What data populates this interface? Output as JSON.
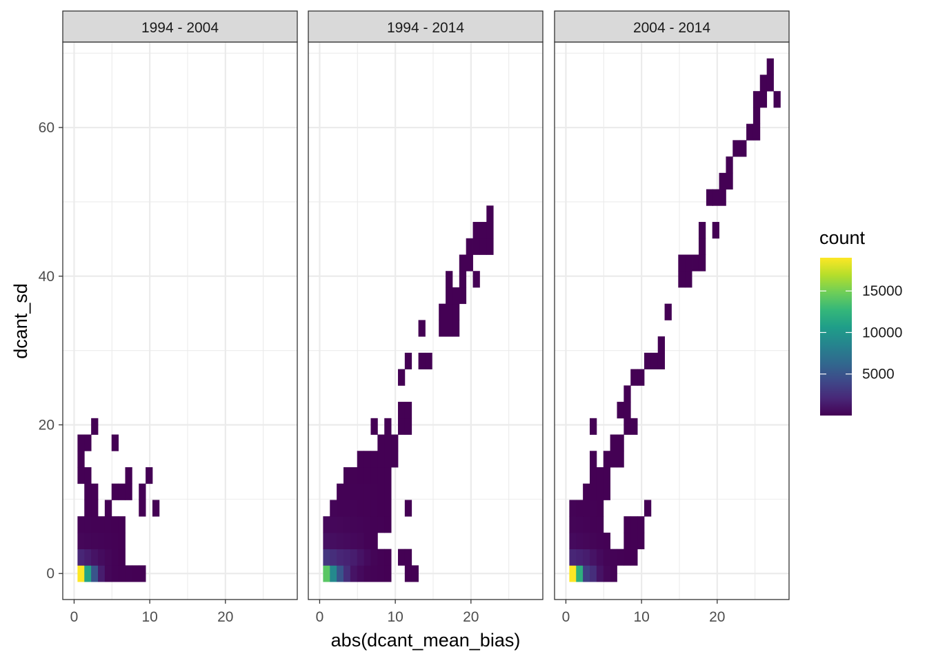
{
  "chart_data": {
    "type": "heatmap",
    "subtype": "faceted 2D histogram",
    "xlabel": "abs(dcant_mean_bias)",
    "ylabel": "dcant_sd",
    "xlim": [
      -1.5,
      29.5
    ],
    "ylim": [
      -3.5,
      71.5
    ],
    "x_ticks": [
      0,
      10,
      20
    ],
    "y_ticks": [
      0,
      20,
      40,
      60
    ],
    "bin_width_x": 0.9,
    "bin_width_y": 2.2,
    "grid": true,
    "legend": {
      "title": "count",
      "placement": "right",
      "colormap": "viridis",
      "min": 1,
      "max": 19000,
      "ticks": [
        5000,
        10000,
        15000
      ]
    },
    "panels": [
      {
        "strip": "1994 - 2004",
        "cells": [
          [
            0.9,
            0.0,
            19000
          ],
          [
            1.8,
            0.0,
            11000
          ],
          [
            2.7,
            0.0,
            5000
          ],
          [
            3.6,
            0.0,
            1500
          ],
          [
            4.5,
            0.0,
            300
          ],
          [
            5.4,
            0.0,
            100
          ],
          [
            6.3,
            0.0,
            60
          ],
          [
            7.2,
            0.0,
            40
          ],
          [
            8.1,
            0.0,
            20
          ],
          [
            9.0,
            0.0,
            5
          ],
          [
            0.9,
            2.2,
            2000
          ],
          [
            1.8,
            2.2,
            1500
          ],
          [
            2.7,
            2.2,
            1000
          ],
          [
            3.6,
            2.2,
            600
          ],
          [
            4.5,
            2.2,
            300
          ],
          [
            5.4,
            2.2,
            100
          ],
          [
            6.3,
            2.2,
            20
          ],
          [
            0.9,
            4.4,
            300
          ],
          [
            1.8,
            4.4,
            250
          ],
          [
            2.7,
            4.4,
            200
          ],
          [
            3.6,
            4.4,
            150
          ],
          [
            4.5,
            4.4,
            100
          ],
          [
            5.4,
            4.4,
            50
          ],
          [
            6.3,
            4.4,
            10
          ],
          [
            0.9,
            6.6,
            100
          ],
          [
            1.8,
            6.6,
            100
          ],
          [
            2.7,
            6.6,
            80
          ],
          [
            3.6,
            6.6,
            60
          ],
          [
            4.5,
            6.6,
            40
          ],
          [
            5.4,
            6.6,
            20
          ],
          [
            6.3,
            6.6,
            5
          ],
          [
            1.8,
            8.8,
            20
          ],
          [
            2.7,
            8.8,
            15
          ],
          [
            4.5,
            8.8,
            5
          ],
          [
            9.0,
            8.8,
            2
          ],
          [
            10.8,
            8.8,
            2
          ],
          [
            1.8,
            11.0,
            10
          ],
          [
            2.7,
            11.0,
            8
          ],
          [
            5.4,
            11.0,
            5
          ],
          [
            6.3,
            11.0,
            4
          ],
          [
            7.2,
            11.0,
            3
          ],
          [
            9.0,
            11.0,
            2
          ],
          [
            0.9,
            13.2,
            5
          ],
          [
            1.8,
            13.2,
            4
          ],
          [
            7.2,
            13.2,
            2
          ],
          [
            9.9,
            13.2,
            2
          ],
          [
            0.9,
            15.4,
            3
          ],
          [
            0.9,
            17.6,
            3
          ],
          [
            1.8,
            17.6,
            2
          ],
          [
            5.4,
            17.6,
            2
          ],
          [
            2.7,
            19.8,
            1
          ]
        ]
      },
      {
        "strip": "1994 - 2014",
        "cells": [
          [
            0.9,
            0.0,
            14000
          ],
          [
            1.8,
            0.0,
            9000
          ],
          [
            2.7,
            0.0,
            5000
          ],
          [
            3.6,
            0.0,
            2500
          ],
          [
            4.5,
            0.0,
            1000
          ],
          [
            5.4,
            0.0,
            500
          ],
          [
            6.3,
            0.0,
            200
          ],
          [
            7.2,
            0.0,
            100
          ],
          [
            8.1,
            0.0,
            50
          ],
          [
            9.0,
            0.0,
            20
          ],
          [
            11.7,
            0.0,
            5
          ],
          [
            12.6,
            0.0,
            3
          ],
          [
            0.9,
            2.2,
            3000
          ],
          [
            1.8,
            2.2,
            2500
          ],
          [
            2.7,
            2.2,
            2000
          ],
          [
            3.6,
            2.2,
            1800
          ],
          [
            4.5,
            2.2,
            1500
          ],
          [
            5.4,
            2.2,
            1000
          ],
          [
            6.3,
            2.2,
            500
          ],
          [
            7.2,
            2.2,
            200
          ],
          [
            8.1,
            2.2,
            50
          ],
          [
            9.0,
            2.2,
            20
          ],
          [
            10.8,
            2.2,
            5
          ],
          [
            11.7,
            2.2,
            3
          ],
          [
            0.9,
            4.4,
            800
          ],
          [
            1.8,
            4.4,
            700
          ],
          [
            2.7,
            4.4,
            600
          ],
          [
            3.6,
            4.4,
            500
          ],
          [
            4.5,
            4.4,
            400
          ],
          [
            5.4,
            4.4,
            300
          ],
          [
            6.3,
            4.4,
            100
          ],
          [
            7.2,
            4.4,
            50
          ],
          [
            0.9,
            6.6,
            400
          ],
          [
            1.8,
            6.6,
            350
          ],
          [
            2.7,
            6.6,
            300
          ],
          [
            3.6,
            6.6,
            250
          ],
          [
            4.5,
            6.6,
            200
          ],
          [
            5.4,
            6.6,
            150
          ],
          [
            6.3,
            6.6,
            100
          ],
          [
            7.2,
            6.6,
            80
          ],
          [
            8.1,
            6.6,
            40
          ],
          [
            9.0,
            6.6,
            20
          ],
          [
            1.8,
            8.8,
            150
          ],
          [
            2.7,
            8.8,
            130
          ],
          [
            3.6,
            8.8,
            120
          ],
          [
            4.5,
            8.8,
            100
          ],
          [
            5.4,
            8.8,
            80
          ],
          [
            6.3,
            8.8,
            60
          ],
          [
            7.2,
            8.8,
            40
          ],
          [
            8.1,
            8.8,
            20
          ],
          [
            9.0,
            8.8,
            10
          ],
          [
            11.7,
            8.8,
            3
          ],
          [
            2.7,
            11.0,
            80
          ],
          [
            3.6,
            11.0,
            70
          ],
          [
            4.5,
            11.0,
            60
          ],
          [
            5.4,
            11.0,
            50
          ],
          [
            6.3,
            11.0,
            40
          ],
          [
            7.2,
            11.0,
            30
          ],
          [
            8.1,
            11.0,
            20
          ],
          [
            9.0,
            11.0,
            10
          ],
          [
            3.6,
            13.2,
            40
          ],
          [
            4.5,
            13.2,
            30
          ],
          [
            5.4,
            13.2,
            25
          ],
          [
            6.3,
            13.2,
            20
          ],
          [
            7.2,
            13.2,
            15
          ],
          [
            8.1,
            13.2,
            10
          ],
          [
            9.0,
            13.2,
            5
          ],
          [
            5.4,
            15.4,
            15
          ],
          [
            6.3,
            15.4,
            10
          ],
          [
            7.2,
            15.4,
            8
          ],
          [
            8.1,
            15.4,
            5
          ],
          [
            9.0,
            15.4,
            3
          ],
          [
            9.9,
            15.4,
            2
          ],
          [
            8.1,
            17.6,
            3
          ],
          [
            9.0,
            17.6,
            2
          ],
          [
            9.9,
            17.6,
            2
          ],
          [
            7.2,
            19.8,
            2
          ],
          [
            9.0,
            19.8,
            2
          ],
          [
            10.8,
            19.8,
            2
          ],
          [
            11.7,
            19.8,
            1
          ],
          [
            10.8,
            22.0,
            1
          ],
          [
            11.7,
            22.0,
            1
          ],
          [
            10.8,
            26.4,
            1
          ],
          [
            11.7,
            28.6,
            1
          ],
          [
            13.5,
            28.6,
            1
          ],
          [
            14.4,
            28.6,
            1
          ],
          [
            13.5,
            33.0,
            1
          ],
          [
            16.2,
            33.0,
            2
          ],
          [
            17.1,
            33.0,
            2
          ],
          [
            18.0,
            33.0,
            1
          ],
          [
            16.2,
            35.2,
            1
          ],
          [
            17.1,
            35.2,
            1
          ],
          [
            18.0,
            35.2,
            1
          ],
          [
            17.1,
            37.4,
            1
          ],
          [
            18.0,
            37.4,
            1
          ],
          [
            18.9,
            37.4,
            1
          ],
          [
            17.1,
            39.6,
            1
          ],
          [
            18.9,
            39.6,
            1
          ],
          [
            20.7,
            39.6,
            1
          ],
          [
            18.9,
            41.8,
            1
          ],
          [
            19.8,
            41.8,
            1
          ],
          [
            19.8,
            44.0,
            1
          ],
          [
            20.7,
            44.0,
            1
          ],
          [
            21.6,
            44.0,
            1
          ],
          [
            22.5,
            44.0,
            1
          ],
          [
            20.7,
            46.2,
            1
          ],
          [
            21.6,
            46.2,
            1
          ],
          [
            22.5,
            46.2,
            1
          ],
          [
            22.5,
            48.4,
            1
          ]
        ]
      },
      {
        "strip": "2004 - 2014",
        "cells": [
          [
            0.9,
            0.0,
            19000
          ],
          [
            1.8,
            0.0,
            12000
          ],
          [
            2.7,
            0.0,
            3500
          ],
          [
            3.6,
            0.0,
            2500
          ],
          [
            4.5,
            0.0,
            1000
          ],
          [
            5.4,
            0.0,
            300
          ],
          [
            6.3,
            0.0,
            100
          ],
          [
            0.9,
            2.2,
            2000
          ],
          [
            1.8,
            2.2,
            1800
          ],
          [
            2.7,
            2.2,
            1500
          ],
          [
            3.6,
            2.2,
            1000
          ],
          [
            4.5,
            2.2,
            500
          ],
          [
            5.4,
            2.2,
            200
          ],
          [
            6.3,
            2.2,
            100
          ],
          [
            7.2,
            2.2,
            50
          ],
          [
            8.1,
            2.2,
            20
          ],
          [
            9.0,
            2.2,
            10
          ],
          [
            0.9,
            4.4,
            500
          ],
          [
            1.8,
            4.4,
            400
          ],
          [
            2.7,
            4.4,
            300
          ],
          [
            3.6,
            4.4,
            200
          ],
          [
            4.5,
            4.4,
            100
          ],
          [
            5.4,
            4.4,
            50
          ],
          [
            8.1,
            4.4,
            10
          ],
          [
            9.0,
            4.4,
            5
          ],
          [
            9.9,
            4.4,
            3
          ],
          [
            0.9,
            6.6,
            200
          ],
          [
            1.8,
            6.6,
            150
          ],
          [
            2.7,
            6.6,
            100
          ],
          [
            3.6,
            6.6,
            80
          ],
          [
            4.5,
            6.6,
            50
          ],
          [
            8.1,
            6.6,
            5
          ],
          [
            9.0,
            6.6,
            3
          ],
          [
            9.9,
            6.6,
            2
          ],
          [
            0.9,
            8.8,
            100
          ],
          [
            1.8,
            8.8,
            80
          ],
          [
            2.7,
            8.8,
            60
          ],
          [
            3.6,
            8.8,
            40
          ],
          [
            4.5,
            8.8,
            20
          ],
          [
            10.8,
            8.8,
            2
          ],
          [
            2.7,
            11.0,
            30
          ],
          [
            3.6,
            11.0,
            25
          ],
          [
            4.5,
            11.0,
            20
          ],
          [
            5.4,
            11.0,
            10
          ],
          [
            3.6,
            13.2,
            15
          ],
          [
            4.5,
            13.2,
            10
          ],
          [
            5.4,
            13.2,
            8
          ],
          [
            3.6,
            15.4,
            8
          ],
          [
            5.4,
            15.4,
            6
          ],
          [
            6.3,
            15.4,
            5
          ],
          [
            7.2,
            15.4,
            3
          ],
          [
            6.3,
            17.6,
            3
          ],
          [
            7.2,
            17.6,
            2
          ],
          [
            3.6,
            19.8,
            2
          ],
          [
            8.1,
            19.8,
            2
          ],
          [
            9.0,
            19.8,
            1
          ],
          [
            7.2,
            22.0,
            1
          ],
          [
            8.1,
            22.0,
            1
          ],
          [
            8.1,
            24.2,
            1
          ],
          [
            9.0,
            26.4,
            1
          ],
          [
            9.9,
            26.4,
            1
          ],
          [
            10.8,
            28.6,
            1
          ],
          [
            11.7,
            28.6,
            1
          ],
          [
            12.6,
            28.6,
            1
          ],
          [
            12.6,
            30.8,
            1
          ],
          [
            13.5,
            35.2,
            1
          ],
          [
            15.3,
            39.6,
            1
          ],
          [
            16.2,
            39.6,
            1
          ],
          [
            15.3,
            41.8,
            1
          ],
          [
            16.2,
            41.8,
            1
          ],
          [
            17.1,
            41.8,
            1
          ],
          [
            18.0,
            41.8,
            1
          ],
          [
            18.0,
            44.0,
            1
          ],
          [
            18.0,
            46.2,
            1
          ],
          [
            19.8,
            46.2,
            1
          ],
          [
            19.0,
            50.6,
            1
          ],
          [
            19.8,
            50.6,
            1
          ],
          [
            20.7,
            50.6,
            1
          ],
          [
            20.7,
            52.8,
            1
          ],
          [
            21.6,
            52.8,
            1
          ],
          [
            21.6,
            55.0,
            1
          ],
          [
            22.5,
            57.2,
            1
          ],
          [
            23.4,
            57.2,
            1
          ],
          [
            24.3,
            59.4,
            1
          ],
          [
            25.2,
            59.4,
            1
          ],
          [
            25.2,
            61.6,
            1
          ],
          [
            25.2,
            63.8,
            1
          ],
          [
            26.1,
            63.8,
            1
          ],
          [
            27.9,
            63.8,
            1
          ],
          [
            26.1,
            66.0,
            1
          ],
          [
            27.0,
            66.0,
            1
          ],
          [
            27.0,
            68.2,
            1
          ]
        ]
      }
    ]
  }
}
